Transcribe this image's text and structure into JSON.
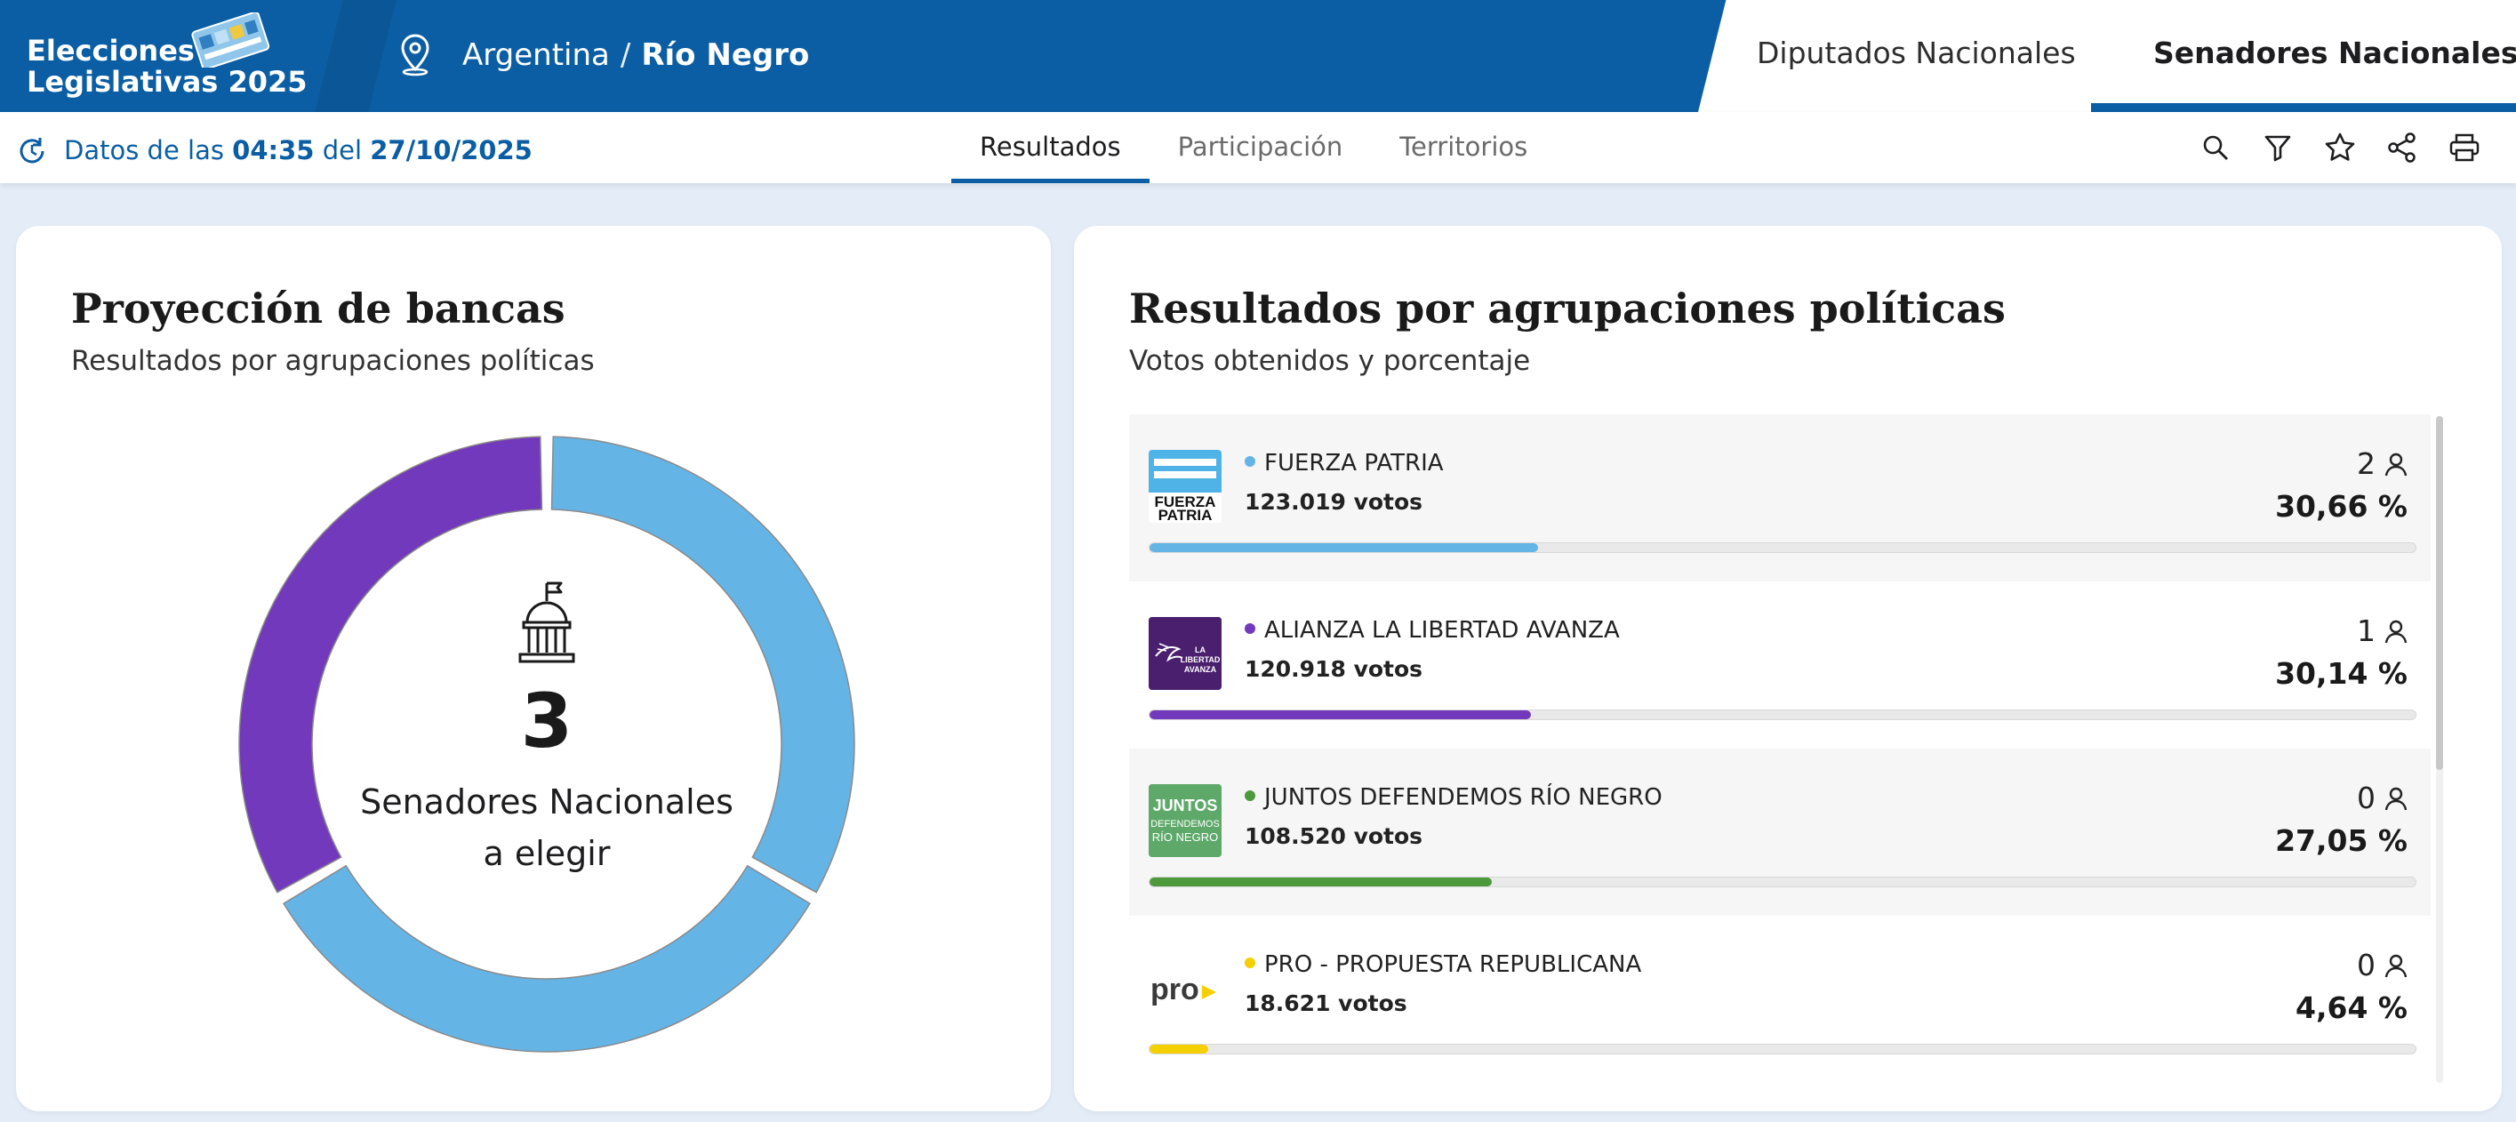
{
  "header": {
    "brand_line1": "Elecciones",
    "brand_line2": "Legislativas 2025",
    "breadcrumb": {
      "country": "Argentina",
      "separator": "/",
      "province": "Río Negro"
    },
    "tabs": [
      {
        "label": "Diputados Nacionales",
        "active": false
      },
      {
        "label": "Senadores Nacionales",
        "active": true
      }
    ],
    "accent": "#0b5ea3"
  },
  "toolbar": {
    "datos_prefix": "Datos de las",
    "time": "04:35",
    "datos_mid": "del",
    "date": "27/10/2025",
    "nav": [
      "Resultados",
      "Participación",
      "Territorios"
    ],
    "icons": [
      "search-icon",
      "filter-icon",
      "star-icon",
      "share-icon",
      "print-icon"
    ]
  },
  "seats_card": {
    "title": "Proyección de bancas",
    "subtitle": "Resultados por agrupaciones políticas",
    "total": "3",
    "line1": "Senadores Nacionales",
    "line2": "a elegir",
    "slices": [
      {
        "party": "FUERZA PATRIA",
        "seats": 1,
        "color": "#64b4e6"
      },
      {
        "party": "FUERZA PATRIA",
        "seats": 1,
        "color": "#64b4e6"
      },
      {
        "party": "ALIANZA LA LIBERTAD AVANZA",
        "seats": 1,
        "color": "#7339bd"
      }
    ]
  },
  "results_card": {
    "title": "Resultados por agrupaciones políticas",
    "subtitle": "Votos obtenidos y porcentaje",
    "parties": [
      {
        "name": "FUERZA PATRIA",
        "votes": "123.019 votos",
        "seats": "2",
        "pct": "30,66 %",
        "pct_value": 30.66,
        "color": "#64b4e6",
        "logo": "fuerza-patria-logo"
      },
      {
        "name": "ALIANZA LA LIBERTAD AVANZA",
        "votes": "120.918 votos",
        "seats": "1",
        "pct": "30,14 %",
        "pct_value": 30.14,
        "color": "#7339bd",
        "logo": "libertad-avanza-logo"
      },
      {
        "name": "JUNTOS DEFENDEMOS RÍO NEGRO",
        "votes": "108.520 votos",
        "seats": "0",
        "pct": "27,05 %",
        "pct_value": 27.05,
        "color": "#4c9a3c",
        "logo": "juntos-defendemos-logo"
      },
      {
        "name": "PRO - PROPUESTA REPUBLICANA",
        "votes": "18.621 votos",
        "seats": "0",
        "pct": "4,64 %",
        "pct_value": 4.64,
        "color": "#f5d000",
        "logo": "pro-logo"
      }
    ]
  }
}
